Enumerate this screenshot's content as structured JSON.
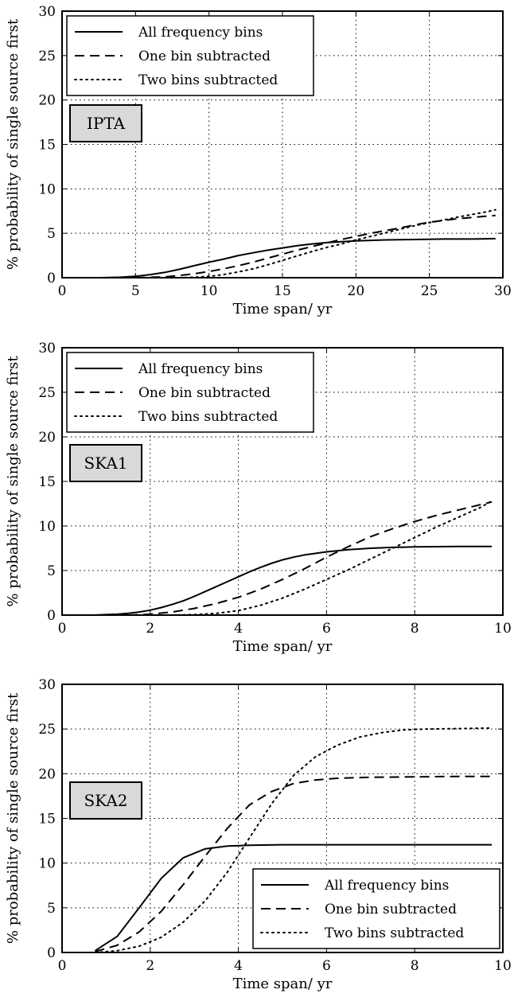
{
  "chart_data": [
    {
      "type": "line",
      "xlabel": "Time span/ yr",
      "ylabel": "% probability of single source first",
      "xlim": [
        0,
        30
      ],
      "ylim": [
        0,
        30
      ],
      "xticks": [
        0,
        5,
        10,
        15,
        20,
        25,
        30
      ],
      "yticks": [
        0,
        5,
        10,
        15,
        20,
        25,
        30
      ],
      "grid": true,
      "grid_style": "dotted",
      "legend_position": "top-left",
      "annotation": "IPTA",
      "series": [
        {
          "name": "All frequency bins",
          "style": "solid",
          "x": [
            2.5,
            4,
            5,
            6,
            7,
            8,
            9,
            10,
            11,
            12,
            13,
            14,
            15,
            16,
            17,
            18,
            19,
            20,
            21,
            22,
            24,
            26,
            28,
            29.5
          ],
          "y": [
            0,
            0.05,
            0.15,
            0.35,
            0.6,
            0.95,
            1.35,
            1.75,
            2.1,
            2.5,
            2.8,
            3.1,
            3.35,
            3.6,
            3.8,
            3.95,
            4.05,
            4.15,
            4.2,
            4.25,
            4.3,
            4.35,
            4.35,
            4.4
          ]
        },
        {
          "name": "One bin subtracted",
          "style": "dashed",
          "x": [
            5,
            6,
            7,
            8,
            9,
            10,
            11,
            12,
            13,
            14,
            15,
            16,
            17,
            18,
            19,
            20,
            21,
            22,
            23,
            24,
            25,
            26,
            27,
            28,
            29,
            29.5
          ],
          "y": [
            0,
            0.05,
            0.1,
            0.25,
            0.45,
            0.7,
            1.0,
            1.35,
            1.75,
            2.2,
            2.65,
            3.1,
            3.5,
            3.9,
            4.3,
            4.65,
            5.0,
            5.3,
            5.6,
            5.95,
            6.25,
            6.45,
            6.65,
            6.8,
            6.95,
            7.0
          ]
        },
        {
          "name": "Two bins subtracted",
          "style": "dotted",
          "x": [
            8,
            9,
            10,
            11,
            12,
            13,
            14,
            15,
            16,
            17,
            18,
            19,
            20,
            21,
            22,
            23,
            24,
            25,
            26,
            27,
            28,
            29,
            29.5
          ],
          "y": [
            0,
            0.05,
            0.15,
            0.35,
            0.65,
            1.0,
            1.45,
            1.95,
            2.45,
            2.95,
            3.4,
            3.8,
            4.25,
            4.65,
            5.05,
            5.45,
            5.85,
            6.2,
            6.5,
            6.85,
            7.15,
            7.45,
            7.65
          ]
        }
      ]
    },
    {
      "type": "line",
      "xlabel": "Time span/ yr",
      "ylabel": "% probability of single source first",
      "xlim": [
        0,
        10
      ],
      "ylim": [
        0,
        30
      ],
      "xticks": [
        0,
        2,
        4,
        6,
        8,
        10
      ],
      "yticks": [
        0,
        5,
        10,
        15,
        20,
        25,
        30
      ],
      "grid": true,
      "grid_style": "dotted",
      "legend_position": "top-left",
      "annotation": "SKA1",
      "series": [
        {
          "name": "All frequency bins",
          "style": "solid",
          "x": [
            0.7,
            1,
            1.25,
            1.5,
            1.75,
            2,
            2.25,
            2.5,
            2.75,
            3,
            3.25,
            3.5,
            3.75,
            4,
            4.25,
            4.5,
            4.75,
            5,
            5.25,
            5.5,
            6,
            6.5,
            7,
            7.5,
            8,
            9,
            9.75
          ],
          "y": [
            0,
            0.05,
            0.1,
            0.2,
            0.35,
            0.55,
            0.85,
            1.2,
            1.6,
            2.1,
            2.65,
            3.2,
            3.75,
            4.3,
            4.85,
            5.35,
            5.8,
            6.2,
            6.5,
            6.75,
            7.1,
            7.35,
            7.5,
            7.6,
            7.65,
            7.7,
            7.7
          ]
        },
        {
          "name": "One bin subtracted",
          "style": "dashed",
          "x": [
            1.5,
            2,
            2.5,
            3,
            3.5,
            4,
            4.5,
            5,
            5.5,
            6,
            6.5,
            7,
            7.5,
            8,
            8.5,
            9,
            9.5,
            9.75
          ],
          "y": [
            0,
            0.1,
            0.35,
            0.75,
            1.3,
            2.0,
            2.9,
            4.0,
            5.2,
            6.5,
            7.7,
            8.8,
            9.7,
            10.5,
            11.2,
            11.8,
            12.4,
            12.7
          ]
        },
        {
          "name": "Two bins subtracted",
          "style": "dotted",
          "x": [
            2.5,
            3,
            3.5,
            4,
            4.5,
            5,
            5.5,
            6,
            6.5,
            7,
            7.5,
            8,
            8.5,
            9,
            9.5,
            9.75
          ],
          "y": [
            0,
            0.05,
            0.2,
            0.5,
            1.1,
            1.9,
            2.9,
            4.0,
            5.1,
            6.3,
            7.5,
            8.7,
            9.9,
            11.0,
            12.1,
            12.8
          ]
        }
      ]
    },
    {
      "type": "line",
      "xlabel": "Time span/ yr",
      "ylabel": "% probability of single source first",
      "xlim": [
        0,
        10
      ],
      "ylim": [
        0,
        30
      ],
      "xticks": [
        0,
        2,
        4,
        6,
        8,
        10
      ],
      "yticks": [
        0,
        5,
        10,
        15,
        20,
        25,
        30
      ],
      "grid": true,
      "grid_style": "dotted",
      "legend_position": "bottom-right",
      "annotation": "SKA2",
      "series": [
        {
          "name": "All frequency bins",
          "style": "solid",
          "x": [
            0.75,
            1.25,
            1.75,
            2.25,
            2.75,
            3.25,
            3.75,
            4.25,
            5,
            6,
            7,
            8,
            9,
            9.75
          ],
          "y": [
            0.2,
            1.8,
            5.0,
            8.3,
            10.6,
            11.6,
            11.9,
            12.0,
            12.05,
            12.05,
            12.05,
            12.05,
            12.05,
            12.05
          ]
        },
        {
          "name": "One bin subtracted",
          "style": "dashed",
          "x": [
            0.75,
            1.25,
            1.75,
            2.25,
            2.75,
            3.25,
            3.75,
            4.25,
            4.75,
            5.25,
            5.75,
            6.25,
            7,
            8,
            9,
            9.75
          ],
          "y": [
            0.1,
            0.8,
            2.3,
            4.6,
            7.6,
            10.8,
            13.9,
            16.5,
            18.0,
            18.9,
            19.3,
            19.5,
            19.6,
            19.65,
            19.7,
            19.7
          ]
        },
        {
          "name": "Two bins subtracted",
          "style": "dotted",
          "x": [
            0.75,
            1.25,
            1.75,
            2.25,
            2.75,
            3.25,
            3.75,
            4.25,
            4.75,
            5.25,
            5.75,
            6.25,
            6.75,
            7.25,
            7.75,
            8.25,
            9,
            9.75
          ],
          "y": [
            0,
            0.2,
            0.7,
            1.7,
            3.4,
            5.8,
            9.0,
            12.8,
            16.6,
            19.8,
            21.9,
            23.2,
            24.1,
            24.6,
            24.9,
            25.0,
            25.05,
            25.1
          ]
        }
      ]
    }
  ]
}
